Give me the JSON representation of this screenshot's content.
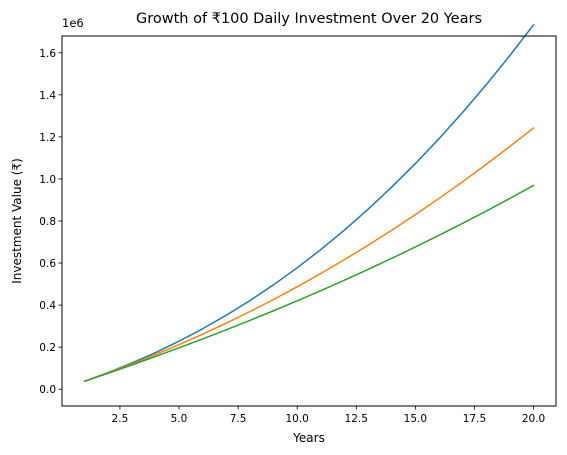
{
  "chart_data": {
    "type": "line",
    "title": "Growth of ₹100 Daily Investment Over 20 Years",
    "xlabel": "Years",
    "ylabel": "Investment Value (₹)",
    "y_multiplier_label": "1e6",
    "xlim": [
      0.05,
      20.95
    ],
    "ylim": [
      -0.08,
      1.68
    ],
    "x_ticks": [
      2.5,
      5.0,
      7.5,
      10.0,
      12.5,
      15.0,
      17.5,
      20.0
    ],
    "x_tick_labels": [
      "2.5",
      "5.0",
      "7.5",
      "10.0",
      "12.5",
      "15.0",
      "17.5",
      "20.0"
    ],
    "y_ticks": [
      0.0,
      0.2,
      0.4,
      0.6,
      0.8,
      1.0,
      1.2,
      1.4,
      1.6
    ],
    "y_tick_labels": [
      "0.0",
      "0.2",
      "0.4",
      "0.6",
      "0.8",
      "1.0",
      "1.2",
      "1.4",
      "1.6"
    ],
    "grid": false,
    "legend": "none",
    "x": [
      1,
      2,
      3,
      4,
      5,
      6,
      7,
      8,
      9,
      10,
      11,
      12,
      13,
      14,
      15,
      16,
      17,
      18,
      19,
      20
    ],
    "series": [
      {
        "color": "#1f77b4",
        "values": [
          0.0376,
          0.0789,
          0.1242,
          0.1738,
          0.2281,
          0.2873,
          0.3516,
          0.4213,
          0.4965,
          0.5774,
          0.6642,
          0.757,
          0.856,
          0.9613,
          1.0731,
          1.1915,
          1.3166,
          1.4485,
          1.5873,
          1.7331
        ]
      },
      {
        "color": "#ff7f0e",
        "values": [
          0.0376,
          0.0775,
          0.1197,
          0.1644,
          0.2116,
          0.2614,
          0.3138,
          0.3689,
          0.4266,
          0.4871,
          0.5502,
          0.6161,
          0.6848,
          0.7562,
          0.8304,
          0.9073,
          0.987,
          1.0695,
          1.1547,
          1.2428
        ]
      },
      {
        "color": "#2ca02c",
        "values": [
          0.0376,
          0.0759,
          0.1151,
          0.1553,
          0.1966,
          0.239,
          0.2825,
          0.3272,
          0.3731,
          0.4203,
          0.4688,
          0.5186,
          0.5698,
          0.6224,
          0.6764,
          0.7319,
          0.7889,
          0.8474,
          0.9075,
          0.9692
        ]
      }
    ]
  }
}
